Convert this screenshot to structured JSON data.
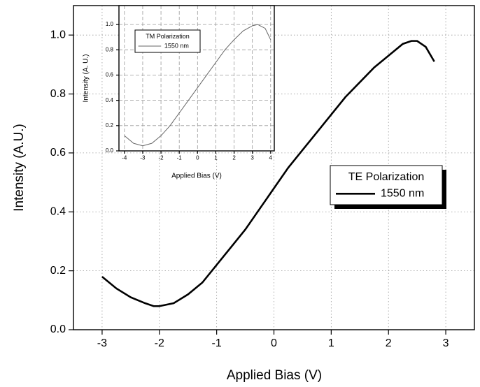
{
  "chart_data": [
    {
      "type": "line",
      "x_label": "Applied Bias (V)",
      "y_label": "Intensity (A.U.)",
      "legend_title": "TE Polarization",
      "x": [
        -3,
        -2.75,
        -2.5,
        -2.25,
        -2.1,
        -2,
        -1.75,
        -1.5,
        -1.25,
        -1,
        -0.75,
        -0.5,
        -0.25,
        0,
        0.25,
        0.5,
        0.75,
        1,
        1.25,
        1.5,
        1.75,
        2,
        2.25,
        2.4,
        2.5,
        2.65,
        2.8
      ],
      "series": [
        {
          "name": "1550 nm",
          "color": "#000000",
          "values": [
            0.18,
            0.14,
            0.11,
            0.09,
            0.08,
            0.08,
            0.09,
            0.12,
            0.16,
            0.22,
            0.28,
            0.34,
            0.41,
            0.48,
            0.55,
            0.61,
            0.67,
            0.73,
            0.79,
            0.84,
            0.89,
            0.93,
            0.97,
            0.98,
            0.98,
            0.96,
            0.91
          ]
        }
      ],
      "xlim": [
        -3.5,
        3.5
      ],
      "ylim": [
        0,
        1.1
      ],
      "xticks": [
        -3,
        -2,
        -1,
        0,
        1,
        2,
        3
      ],
      "yticks": [
        {
          "value": 0,
          "label": "0.0"
        },
        0.2,
        0.4,
        0.6,
        0.8,
        {
          "value": 1,
          "label": "1.0"
        }
      ],
      "grid": "dotted"
    },
    {
      "type": "line",
      "x_label": "Applied Bias (V)",
      "y_label": "Intensity (A. U.)",
      "legend_title": "TM Polarization",
      "x": [
        -4,
        -3.5,
        -3,
        -2.5,
        -2,
        -1.5,
        -1,
        -0.5,
        0,
        0.5,
        1,
        1.5,
        2,
        2.5,
        3,
        3.3,
        3.7,
        4
      ],
      "series": [
        {
          "name": "1550 nm",
          "color": "#666666",
          "values": [
            0.12,
            0.06,
            0.04,
            0.06,
            0.12,
            0.2,
            0.3,
            0.4,
            0.5,
            0.6,
            0.7,
            0.8,
            0.88,
            0.95,
            0.99,
            1.0,
            0.97,
            0.88
          ]
        }
      ],
      "xlim": [
        -4.3,
        4.2
      ],
      "ylim": [
        0,
        1.15
      ],
      "xticks": [
        -4,
        -3,
        -2,
        -1,
        0,
        1,
        2,
        3,
        4
      ],
      "yticks": [
        {
          "value": 0,
          "label": "0.0"
        },
        0.2,
        0.4,
        0.6,
        0.8,
        {
          "value": 1,
          "label": "1.0"
        }
      ],
      "grid": "dashed"
    }
  ]
}
